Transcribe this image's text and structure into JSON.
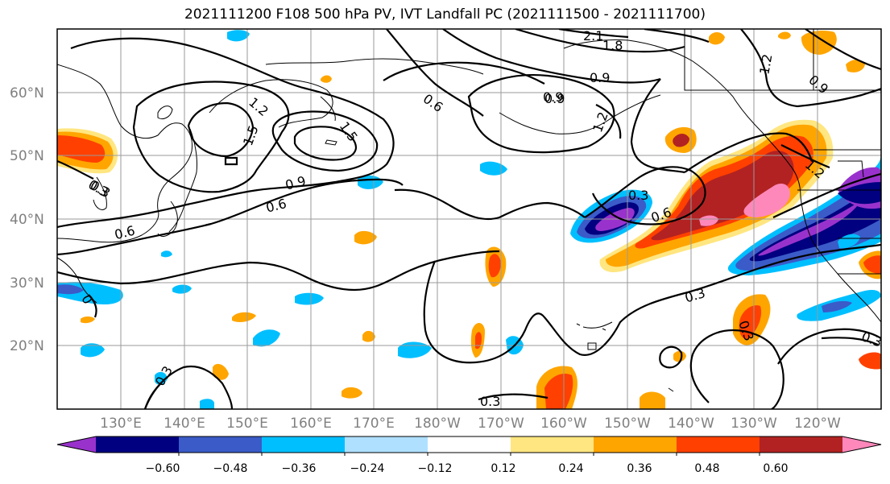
{
  "title": "2021111200 F108 500 hPa PV, IVT Landfall PC (2021111500 - 2021111700)",
  "map": {
    "lon_labels": [
      "130°E",
      "140°E",
      "150°E",
      "160°E",
      "170°E",
      "180°W",
      "170°W",
      "160°W",
      "150°W",
      "140°W",
      "130°W",
      "120°W"
    ],
    "lat_labels": [
      "60°N",
      "50°N",
      "40°N",
      "30°N",
      "20°N"
    ],
    "pv_contour_labels": [
      "2.1",
      "1.8",
      "0.9",
      "0.9",
      "1.2",
      "0.6",
      "1.2",
      "1.5",
      "1.5",
      "0.9",
      "0.6",
      "0.3",
      "0.6",
      "0.6",
      "0.3",
      "0.3",
      "0.3",
      "0.3",
      "0.3",
      "0.9",
      "0.3",
      "1.2",
      "0.9",
      "0",
      "0.3",
      "1.2"
    ]
  },
  "colorbar": {
    "colors": [
      "#9932cc",
      "#000080",
      "#3a5bc8",
      "#00bfff",
      "#b0e0ff",
      "#ffffff",
      "#ffe680",
      "#ffa500",
      "#ff4000",
      "#b22222",
      "#ff88bb"
    ],
    "tick_labels": [
      "−0.60",
      "−0.48",
      "−0.36",
      "−0.24",
      "−0.12",
      "0.12",
      "0.24",
      "0.36",
      "0.48",
      "0.60"
    ]
  }
}
